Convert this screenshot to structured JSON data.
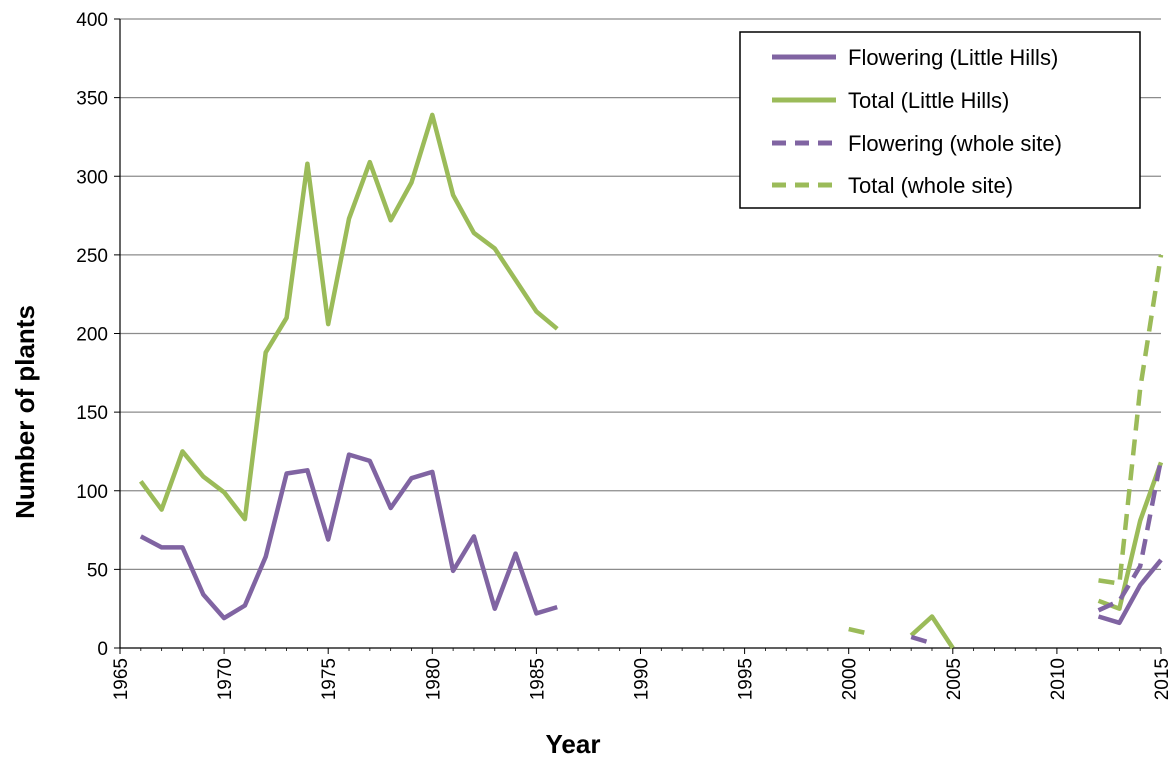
{
  "chart_data": {
    "type": "line",
    "title": "",
    "xlabel": "Year",
    "ylabel": "Number of plants",
    "xlim": [
      1965,
      2015
    ],
    "ylim": [
      0,
      400
    ],
    "xticks": [
      1965,
      1970,
      1975,
      1980,
      1985,
      1990,
      1995,
      2000,
      2005,
      2010,
      2015
    ],
    "yticks": [
      0,
      50,
      100,
      150,
      200,
      250,
      300,
      350,
      400
    ],
    "grid": "horizontal",
    "legend": "top-right",
    "series": [
      {
        "name": "Flowering (Little Hills)",
        "color": "#8064a2",
        "dash": "solid",
        "segments": [
          [
            [
              1966,
              71
            ],
            [
              1967,
              64
            ],
            [
              1968,
              64
            ],
            [
              1969,
              34
            ],
            [
              1970,
              19
            ],
            [
              1971,
              27
            ],
            [
              1972,
              58
            ],
            [
              1973,
              111
            ],
            [
              1974,
              113
            ],
            [
              1975,
              69
            ],
            [
              1976,
              123
            ],
            [
              1977,
              119
            ],
            [
              1978,
              89
            ],
            [
              1979,
              108
            ],
            [
              1980,
              112
            ],
            [
              1981,
              49
            ],
            [
              1982,
              71
            ],
            [
              1983,
              25
            ],
            [
              1984,
              60
            ],
            [
              1985,
              22
            ],
            [
              1986,
              26
            ]
          ],
          [
            [
              2012,
              20
            ],
            [
              2013,
              16
            ],
            [
              2014,
              40
            ],
            [
              2015,
              56
            ]
          ]
        ]
      },
      {
        "name": "Total (Little Hills)",
        "color": "#9bbb59",
        "dash": "solid",
        "segments": [
          [
            [
              1966,
              106
            ],
            [
              1967,
              88
            ],
            [
              1968,
              125
            ],
            [
              1969,
              109
            ],
            [
              1970,
              99
            ],
            [
              1971,
              82
            ],
            [
              1972,
              188
            ],
            [
              1973,
              210
            ],
            [
              1974,
              308
            ],
            [
              1975,
              206
            ],
            [
              1976,
              273
            ],
            [
              1977,
              309
            ],
            [
              1978,
              272
            ],
            [
              1979,
              296
            ],
            [
              1980,
              339
            ],
            [
              1981,
              288
            ],
            [
              1982,
              264
            ],
            [
              1983,
              254
            ],
            [
              1984,
              234
            ],
            [
              1985,
              214
            ],
            [
              1986,
              203
            ]
          ],
          [
            [
              2003,
              8
            ],
            [
              2004,
              20
            ],
            [
              2005,
              0
            ]
          ],
          [
            [
              2012,
              30
            ],
            [
              2013,
              25
            ],
            [
              2014,
              81
            ],
            [
              2015,
              118
            ]
          ]
        ]
      },
      {
        "name": "Flowering (whole site)",
        "color": "#8064a2",
        "dash": "dashed",
        "segments": [
          [
            [
              2003,
              7
            ],
            [
              2004,
              3
            ]
          ],
          [
            [
              2012,
              24
            ],
            [
              2013,
              30
            ],
            [
              2014,
              52
            ],
            [
              2015,
              120
            ]
          ]
        ]
      },
      {
        "name": "Total (whole site)",
        "color": "#9bbb59",
        "dash": "dashed",
        "segments": [
          [
            [
              2000,
              12
            ],
            [
              2001,
              9
            ]
          ],
          [
            [
              2012,
              43
            ],
            [
              2013,
              41
            ],
            [
              2014,
              165
            ],
            [
              2015,
              250
            ]
          ]
        ]
      }
    ]
  }
}
